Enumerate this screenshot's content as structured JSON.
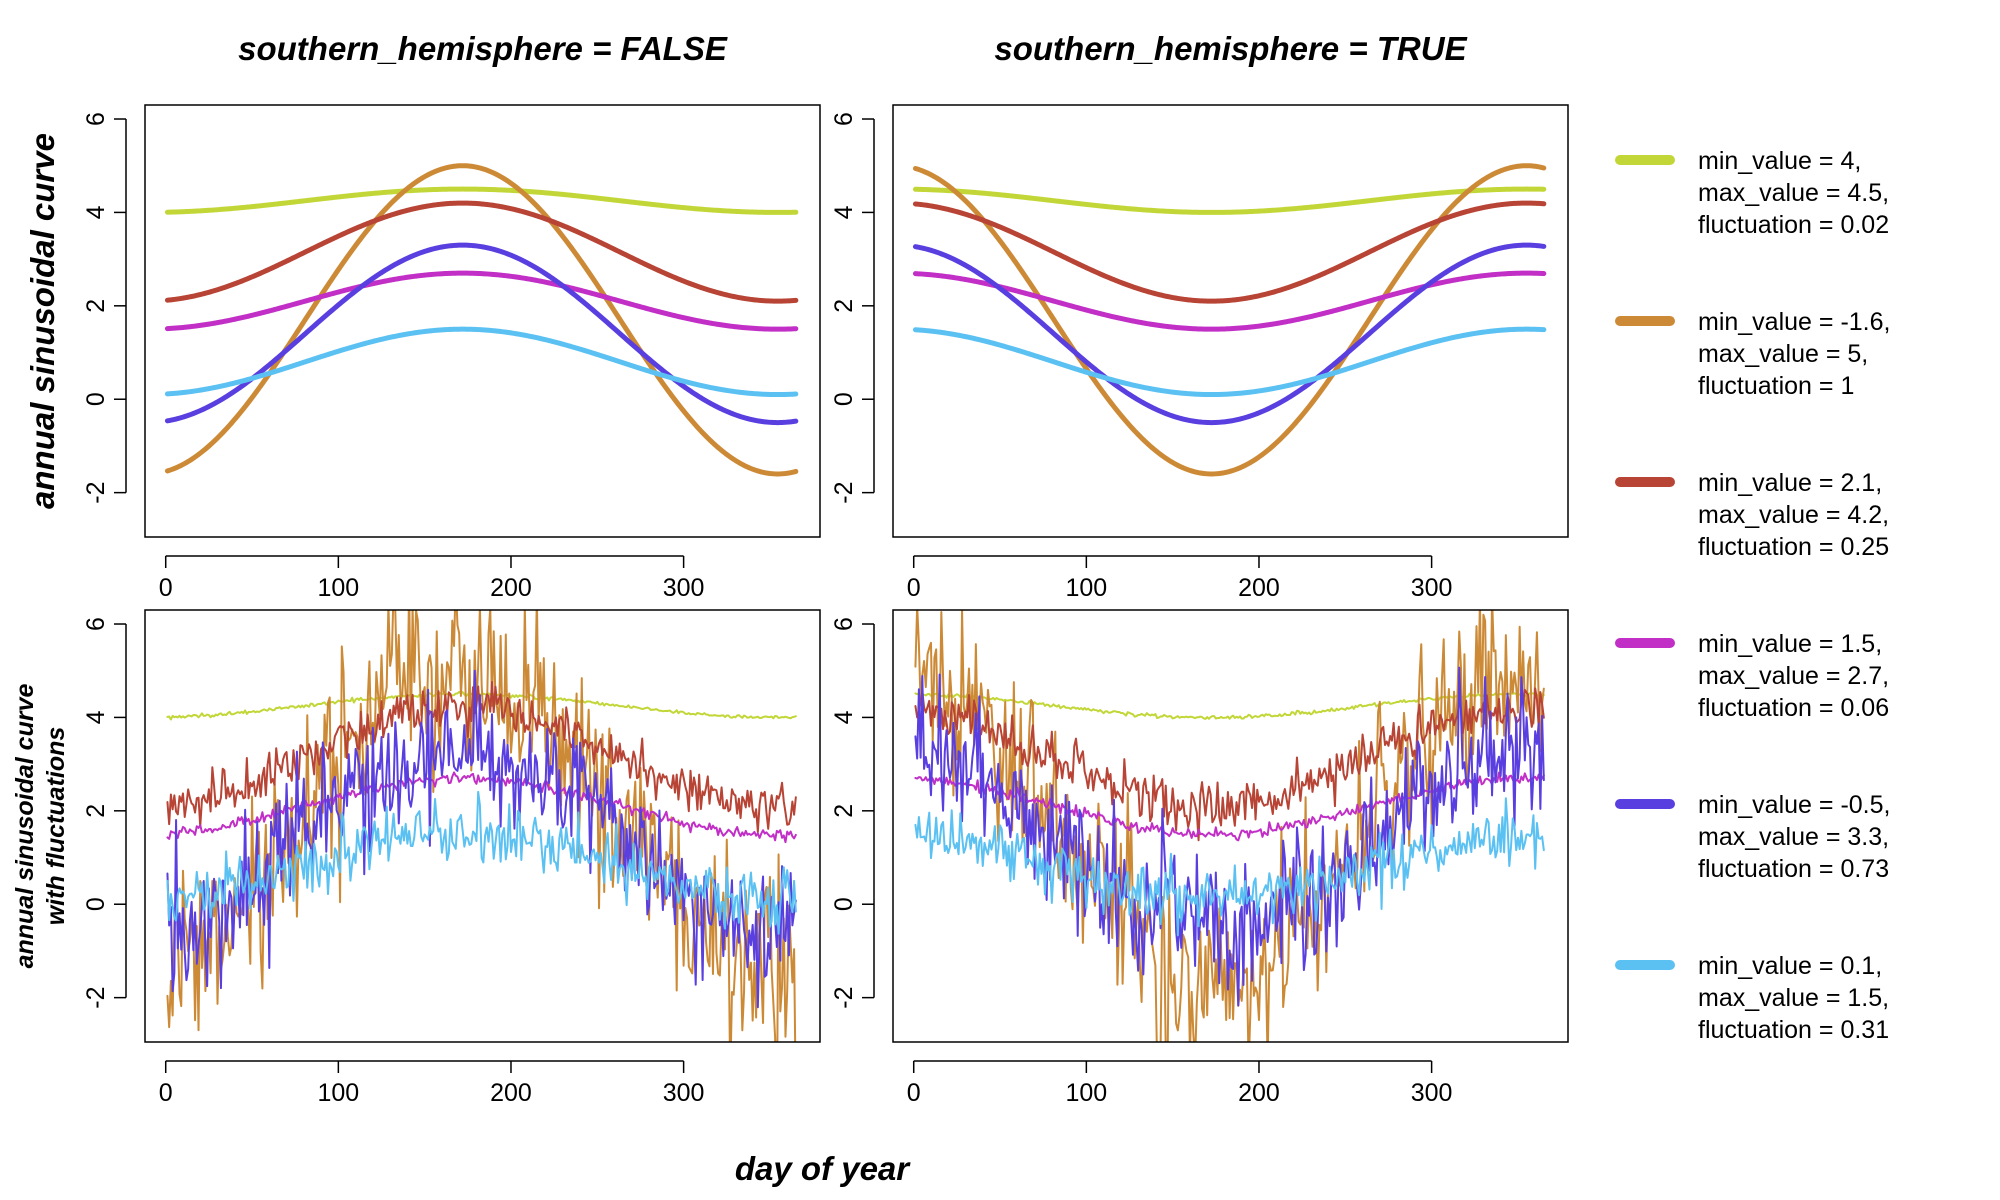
{
  "figure": {
    "panel_titles": [
      "southern_hemisphere = FALSE",
      "southern_hemisphere = TRUE"
    ],
    "row_ylabels": [
      [
        "annual sinusoidal curve"
      ],
      [
        "annual sinusoidal curve",
        "with fluctuations"
      ]
    ],
    "xlabel": "day of year"
  },
  "chart_data": [
    {
      "type": "line",
      "title": "southern_hemisphere = FALSE",
      "ylabel": "annual sinusoidal curve",
      "xlabel": "",
      "southern_hemisphere": false,
      "fluctuations": false,
      "x_domain": [
        1,
        365
      ],
      "xlim": [
        -12,
        379
      ],
      "ylim": [
        -2.95,
        6.3
      ],
      "xticks": [
        0,
        100,
        200,
        300
      ],
      "yticks": [
        -2,
        0,
        2,
        4,
        6
      ],
      "series_ref": "series"
    },
    {
      "type": "line",
      "title": "southern_hemisphere = TRUE",
      "ylabel": "",
      "xlabel": "",
      "southern_hemisphere": true,
      "fluctuations": false,
      "x_domain": [
        1,
        365
      ],
      "xlim": [
        -12,
        379
      ],
      "ylim": [
        -2.95,
        6.3
      ],
      "xticks": [
        0,
        100,
        200,
        300
      ],
      "yticks": [
        -2,
        0,
        2,
        4,
        6
      ],
      "series_ref": "series"
    },
    {
      "type": "line",
      "title": "",
      "ylabel": "annual sinusoidal curve with fluctuations",
      "xlabel": "day of year",
      "southern_hemisphere": false,
      "fluctuations": true,
      "x_domain": [
        1,
        365
      ],
      "xlim": [
        -12,
        379
      ],
      "ylim": [
        -2.95,
        6.3
      ],
      "xticks": [
        0,
        100,
        200,
        300
      ],
      "yticks": [
        -2,
        0,
        2,
        4,
        6
      ],
      "series_ref": "series"
    },
    {
      "type": "line",
      "title": "",
      "ylabel": "",
      "xlabel": "day of year",
      "southern_hemisphere": true,
      "fluctuations": true,
      "x_domain": [
        1,
        365
      ],
      "xlim": [
        -12,
        379
      ],
      "ylim": [
        -2.95,
        6.3
      ],
      "xticks": [
        0,
        100,
        200,
        300
      ],
      "yticks": [
        -2,
        0,
        2,
        4,
        6
      ],
      "series_ref": "series"
    }
  ],
  "series": [
    {
      "name": "min_value = 4, max_value = 4.5, fluctuation = 0.02",
      "legend_lines": [
        "min_value = 4,",
        "max_value = 4.5,",
        "fluctuation = 0.02"
      ],
      "min_value": 4,
      "max_value": 4.5,
      "fluctuation": 0.02,
      "color": "#c2d737"
    },
    {
      "name": "min_value = -1.6, max_value = 5, fluctuation = 1",
      "legend_lines": [
        "min_value = -1.6,",
        "max_value = 5,",
        "fluctuation = 1"
      ],
      "min_value": -1.6,
      "max_value": 5,
      "fluctuation": 1,
      "color": "#cd8a36"
    },
    {
      "name": "min_value = 2.1, max_value = 4.2, fluctuation = 0.25",
      "legend_lines": [
        "min_value = 2.1,",
        "max_value = 4.2,",
        "fluctuation = 0.25"
      ],
      "min_value": 2.1,
      "max_value": 4.2,
      "fluctuation": 0.25,
      "color": "#b84435"
    },
    {
      "name": "min_value = 1.5, max_value = 2.7, fluctuation = 0.06",
      "legend_lines": [
        "min_value = 1.5,",
        "max_value = 2.7,",
        "fluctuation = 0.06"
      ],
      "min_value": 1.5,
      "max_value": 2.7,
      "fluctuation": 0.06,
      "color": "#c12fc6"
    },
    {
      "name": "min_value = -0.5, max_value = 3.3, fluctuation = 0.73",
      "legend_lines": [
        "min_value = -0.5,",
        "max_value = 3.3,",
        "fluctuation = 0.73"
      ],
      "min_value": -0.5,
      "max_value": 3.3,
      "fluctuation": 0.73,
      "color": "#5a3fe0"
    },
    {
      "name": "min_value = 0.1, max_value = 1.5, fluctuation = 0.31",
      "legend_lines": [
        "min_value = 0.1,",
        "max_value = 1.5,",
        "fluctuation = 0.31"
      ],
      "min_value": 0.1,
      "max_value": 1.5,
      "fluctuation": 0.31,
      "color": "#5bc1f2"
    }
  ],
  "curve": {
    "peak_day_north": 172,
    "peak_day_south": 355
  }
}
